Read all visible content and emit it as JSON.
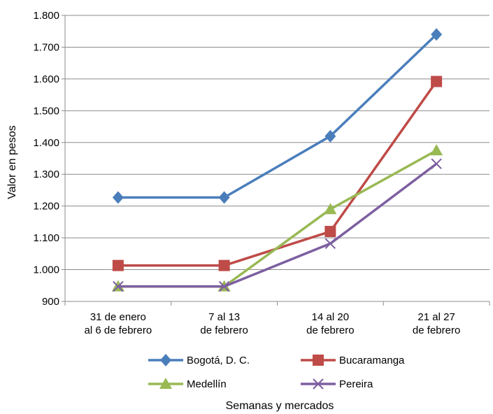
{
  "chart_data": {
    "type": "line",
    "categories": [
      [
        "31 de enero",
        "al 6 de febrero"
      ],
      [
        "7 al 13",
        "de febrero"
      ],
      [
        "14 al 20",
        "de febrero"
      ],
      [
        "21 al 27",
        "de febrero"
      ]
    ],
    "ylabel": "Valor en pesos",
    "xlabel": "Semanas y mercados",
    "ylim": [
      900,
      1800
    ],
    "yticks": [
      {
        "value": 900,
        "label": "900"
      },
      {
        "value": 1000,
        "label": "1.000"
      },
      {
        "value": 1100,
        "label": "1.100"
      },
      {
        "value": 1200,
        "label": "1.200"
      },
      {
        "value": 1300,
        "label": "1.300"
      },
      {
        "value": 1400,
        "label": "1.400"
      },
      {
        "value": 1500,
        "label": "1.500"
      },
      {
        "value": 1600,
        "label": "1.600"
      },
      {
        "value": 1700,
        "label": "1.700"
      },
      {
        "value": 1800,
        "label": "1.800"
      }
    ],
    "grid": true,
    "legend_position": "bottom",
    "series": [
      {
        "name": "Bogotá, D. C.",
        "color": "#4a7ebb",
        "marker": "diamond",
        "values": [
          1227,
          1227,
          1420,
          1740
        ]
      },
      {
        "name": "Bucaramanga",
        "color": "#be4b48",
        "marker": "square",
        "values": [
          1013,
          1013,
          1120,
          1592
        ]
      },
      {
        "name": "Medellín",
        "color": "#98b954",
        "marker": "triangle",
        "values": [
          947,
          947,
          1190,
          1375
        ]
      },
      {
        "name": "Pereira",
        "color": "#7d5fa0",
        "marker": "x",
        "values": [
          947,
          947,
          1082,
          1333
        ]
      }
    ]
  }
}
